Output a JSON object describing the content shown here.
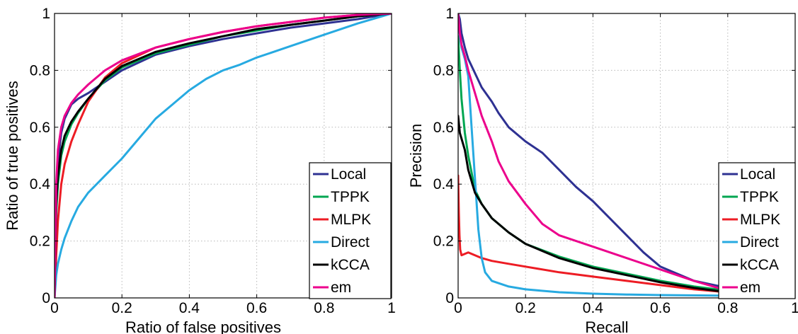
{
  "chart_data": [
    {
      "type": "line",
      "title": "",
      "xlabel": "Ratio of false positives",
      "ylabel": "Ratio of true positives",
      "xlim": [
        0,
        1
      ],
      "ylim": [
        0,
        1
      ],
      "xticks": [
        "0",
        "0.2",
        "0.4",
        "0.6",
        "0.8",
        "1"
      ],
      "yticks": [
        "0",
        "0.2",
        "0.4",
        "0.6",
        "0.8",
        "1"
      ],
      "grid": true,
      "legend_position": "bottom-right",
      "series": [
        {
          "name": "Local",
          "color": "#2e3192",
          "x": [
            0,
            0.005,
            0.01,
            0.02,
            0.03,
            0.05,
            0.07,
            0.1,
            0.15,
            0.2,
            0.3,
            0.4,
            0.5,
            0.6,
            0.7,
            0.8,
            0.9,
            1.0
          ],
          "y": [
            0,
            0.35,
            0.48,
            0.58,
            0.63,
            0.68,
            0.7,
            0.72,
            0.76,
            0.8,
            0.855,
            0.885,
            0.91,
            0.93,
            0.95,
            0.965,
            0.98,
            1.0
          ]
        },
        {
          "name": "TPPK",
          "color": "#00a651",
          "x": [
            0,
            0.005,
            0.01,
            0.02,
            0.03,
            0.05,
            0.07,
            0.1,
            0.15,
            0.2,
            0.3,
            0.4,
            0.5,
            0.6,
            0.7,
            0.8,
            0.9,
            1.0
          ],
          "y": [
            0,
            0.3,
            0.4,
            0.5,
            0.55,
            0.61,
            0.65,
            0.7,
            0.765,
            0.81,
            0.86,
            0.89,
            0.92,
            0.94,
            0.96,
            0.975,
            0.99,
            1.0
          ]
        },
        {
          "name": "MLPK",
          "color": "#ed1c24",
          "x": [
            0,
            0.005,
            0.01,
            0.02,
            0.03,
            0.05,
            0.07,
            0.1,
            0.15,
            0.2,
            0.3,
            0.4,
            0.5,
            0.6,
            0.7,
            0.8,
            0.9,
            1.0
          ],
          "y": [
            0,
            0.15,
            0.27,
            0.4,
            0.47,
            0.55,
            0.61,
            0.69,
            0.775,
            0.825,
            0.88,
            0.91,
            0.935,
            0.955,
            0.97,
            0.985,
            0.995,
            1.0
          ]
        },
        {
          "name": "Direct",
          "color": "#27aae1",
          "x": [
            0,
            0.005,
            0.01,
            0.02,
            0.03,
            0.05,
            0.07,
            0.1,
            0.15,
            0.2,
            0.25,
            0.3,
            0.35,
            0.4,
            0.45,
            0.5,
            0.55,
            0.6,
            0.65,
            0.7,
            0.8,
            0.9,
            1.0
          ],
          "y": [
            0,
            0.08,
            0.12,
            0.17,
            0.21,
            0.27,
            0.32,
            0.37,
            0.43,
            0.49,
            0.56,
            0.63,
            0.68,
            0.73,
            0.77,
            0.8,
            0.82,
            0.845,
            0.865,
            0.885,
            0.925,
            0.965,
            1.0
          ]
        },
        {
          "name": "kCCA",
          "color": "#000000",
          "x": [
            0,
            0.005,
            0.01,
            0.02,
            0.03,
            0.05,
            0.07,
            0.1,
            0.15,
            0.2,
            0.3,
            0.4,
            0.5,
            0.6,
            0.7,
            0.8,
            0.9,
            1.0
          ],
          "y": [
            0,
            0.33,
            0.43,
            0.52,
            0.57,
            0.62,
            0.655,
            0.7,
            0.77,
            0.815,
            0.865,
            0.895,
            0.92,
            0.945,
            0.96,
            0.975,
            0.99,
            1.0
          ]
        },
        {
          "name": "em",
          "color": "#ec008c",
          "x": [
            0,
            0.005,
            0.01,
            0.02,
            0.03,
            0.05,
            0.07,
            0.1,
            0.15,
            0.2,
            0.3,
            0.4,
            0.5,
            0.6,
            0.7,
            0.8,
            0.9,
            1.0
          ],
          "y": [
            0,
            0.4,
            0.52,
            0.6,
            0.64,
            0.685,
            0.715,
            0.75,
            0.8,
            0.835,
            0.88,
            0.91,
            0.935,
            0.955,
            0.97,
            0.985,
            0.995,
            1.0
          ]
        }
      ]
    },
    {
      "type": "line",
      "title": "",
      "xlabel": "Recall",
      "ylabel": "Precision",
      "xlim": [
        0,
        1
      ],
      "ylim": [
        0,
        1
      ],
      "xticks": [
        "0",
        "0.2",
        "0.4",
        "0.6",
        "0.8",
        "1"
      ],
      "yticks": [
        "0",
        "0.2",
        "0.4",
        "0.6",
        "0.8",
        "1"
      ],
      "grid": true,
      "legend_position": "bottom-right",
      "series": [
        {
          "name": "Local",
          "color": "#2e3192",
          "x": [
            0,
            0.005,
            0.01,
            0.02,
            0.03,
            0.05,
            0.07,
            0.1,
            0.12,
            0.15,
            0.2,
            0.25,
            0.3,
            0.35,
            0.4,
            0.45,
            0.5,
            0.55,
            0.6,
            0.7,
            0.8,
            0.9,
            1.0
          ],
          "y": [
            1.0,
            0.98,
            0.93,
            0.88,
            0.84,
            0.79,
            0.74,
            0.69,
            0.65,
            0.6,
            0.55,
            0.51,
            0.45,
            0.39,
            0.34,
            0.28,
            0.22,
            0.16,
            0.11,
            0.06,
            0.035,
            0.02,
            0.01
          ]
        },
        {
          "name": "TPPK",
          "color": "#00a651",
          "x": [
            0,
            0.005,
            0.01,
            0.02,
            0.03,
            0.05,
            0.07,
            0.1,
            0.15,
            0.2,
            0.3,
            0.4,
            0.5,
            0.6,
            0.7,
            0.8,
            0.9,
            1.0
          ],
          "y": [
            0.92,
            0.8,
            0.7,
            0.58,
            0.5,
            0.38,
            0.33,
            0.28,
            0.23,
            0.19,
            0.145,
            0.11,
            0.085,
            0.06,
            0.04,
            0.025,
            0.015,
            0.01
          ]
        },
        {
          "name": "MLPK",
          "color": "#ed1c24",
          "x": [
            0,
            0.002,
            0.004,
            0.006,
            0.01,
            0.02,
            0.03,
            0.05,
            0.07,
            0.1,
            0.15,
            0.2,
            0.3,
            0.4,
            0.5,
            0.6,
            0.7,
            0.8,
            0.9,
            1.0
          ],
          "y": [
            0.43,
            0.3,
            0.22,
            0.17,
            0.15,
            0.155,
            0.16,
            0.15,
            0.14,
            0.13,
            0.12,
            0.11,
            0.09,
            0.075,
            0.06,
            0.045,
            0.03,
            0.02,
            0.012,
            0.008
          ]
        },
        {
          "name": "Direct",
          "color": "#27aae1",
          "x": [
            0,
            0.005,
            0.01,
            0.02,
            0.03,
            0.04,
            0.05,
            0.06,
            0.07,
            0.08,
            0.1,
            0.15,
            0.2,
            0.3,
            0.4,
            0.5,
            0.6,
            0.8,
            1.0
          ],
          "y": [
            1.0,
            0.92,
            0.88,
            0.84,
            0.78,
            0.6,
            0.42,
            0.24,
            0.14,
            0.09,
            0.06,
            0.04,
            0.03,
            0.02,
            0.015,
            0.012,
            0.01,
            0.008,
            0.005
          ]
        },
        {
          "name": "kCCA",
          "color": "#000000",
          "x": [
            0,
            0.005,
            0.01,
            0.02,
            0.03,
            0.05,
            0.07,
            0.1,
            0.15,
            0.2,
            0.3,
            0.4,
            0.5,
            0.6,
            0.7,
            0.8,
            0.9,
            1.0
          ],
          "y": [
            0.64,
            0.58,
            0.56,
            0.52,
            0.45,
            0.37,
            0.33,
            0.28,
            0.23,
            0.19,
            0.14,
            0.105,
            0.08,
            0.055,
            0.035,
            0.02,
            0.012,
            0.008
          ]
        },
        {
          "name": "em",
          "color": "#ec008c",
          "x": [
            0,
            0.005,
            0.01,
            0.02,
            0.03,
            0.05,
            0.07,
            0.1,
            0.12,
            0.15,
            0.2,
            0.25,
            0.3,
            0.4,
            0.5,
            0.6,
            0.7,
            0.8,
            0.9,
            1.0
          ],
          "y": [
            1.0,
            0.93,
            0.89,
            0.85,
            0.8,
            0.72,
            0.64,
            0.55,
            0.48,
            0.41,
            0.33,
            0.26,
            0.22,
            0.18,
            0.14,
            0.1,
            0.06,
            0.025,
            0.012,
            0.008
          ]
        }
      ]
    }
  ]
}
